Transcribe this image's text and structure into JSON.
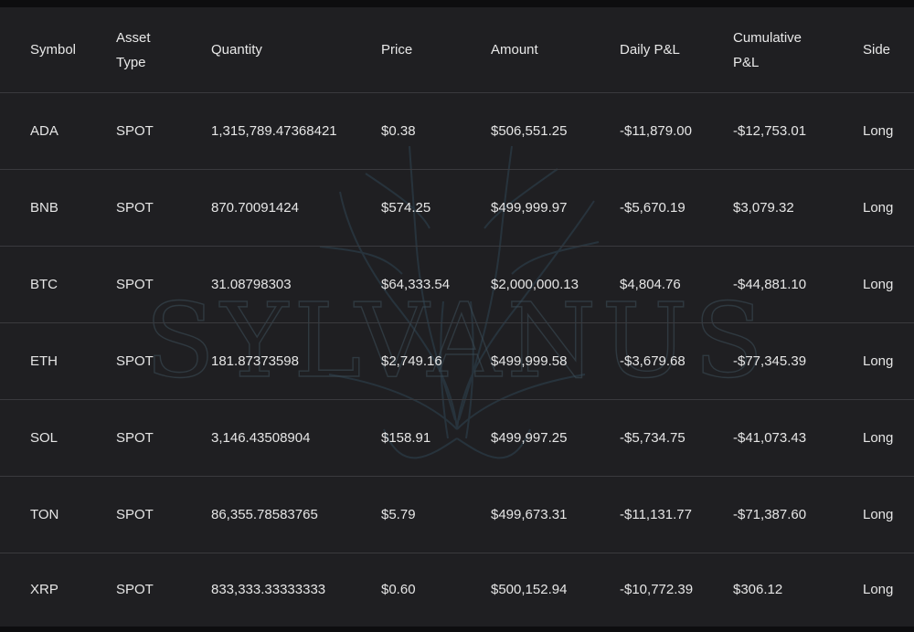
{
  "table": {
    "headers": [
      {
        "lines": [
          "Symbol"
        ]
      },
      {
        "lines": [
          "Asset",
          "Type"
        ]
      },
      {
        "lines": [
          "Quantity"
        ]
      },
      {
        "lines": [
          "Price"
        ]
      },
      {
        "lines": [
          "Amount"
        ]
      },
      {
        "lines": [
          "Daily P&L"
        ]
      },
      {
        "lines": [
          "Cumulative",
          "P&L"
        ]
      },
      {
        "lines": [
          "Side"
        ]
      }
    ],
    "rows": [
      {
        "symbol": "ADA",
        "asset_type": "SPOT",
        "quantity": "1,315,789.47368421",
        "price": "$0.38",
        "amount": "$506,551.25",
        "daily_pnl": "-$11,879.00",
        "cumulative_pnl": "-$12,753.01",
        "side": "Long"
      },
      {
        "symbol": "BNB",
        "asset_type": "SPOT",
        "quantity": "870.70091424",
        "price": "$574.25",
        "amount": "$499,999.97",
        "daily_pnl": "-$5,670.19",
        "cumulative_pnl": "$3,079.32",
        "side": "Long"
      },
      {
        "symbol": "BTC",
        "asset_type": "SPOT",
        "quantity": "31.08798303",
        "price": "$64,333.54",
        "amount": "$2,000,000.13",
        "daily_pnl": "$4,804.76",
        "cumulative_pnl": "-$44,881.10",
        "side": "Long"
      },
      {
        "symbol": "ETH",
        "asset_type": "SPOT",
        "quantity": "181.87373598",
        "price": "$2,749.16",
        "amount": "$499,999.58",
        "daily_pnl": "-$3,679.68",
        "cumulative_pnl": "-$77,345.39",
        "side": "Long"
      },
      {
        "symbol": "SOL",
        "asset_type": "SPOT",
        "quantity": "3,146.43508904",
        "price": "$158.91",
        "amount": "$499,997.25",
        "daily_pnl": "-$5,734.75",
        "cumulative_pnl": "-$41,073.43",
        "side": "Long"
      },
      {
        "symbol": "TON",
        "asset_type": "SPOT",
        "quantity": "86,355.78583765",
        "price": "$5.79",
        "amount": "$499,673.31",
        "daily_pnl": "-$11,131.77",
        "cumulative_pnl": "-$71,387.60",
        "side": "Long"
      },
      {
        "symbol": "XRP",
        "asset_type": "SPOT",
        "quantity": "833,333.33333333",
        "price": "$0.60",
        "amount": "$500,152.94",
        "daily_pnl": "-$10,772.39",
        "cumulative_pnl": "$306.12",
        "side": "Long"
      }
    ]
  },
  "watermark": {
    "text": "SYLVANUS",
    "icon": "tree-logo-icon",
    "color": "#3b4b55"
  },
  "colors": {
    "background": "#1f1f22",
    "text": "#e6e6e6",
    "divider": "#3a3a3e"
  }
}
